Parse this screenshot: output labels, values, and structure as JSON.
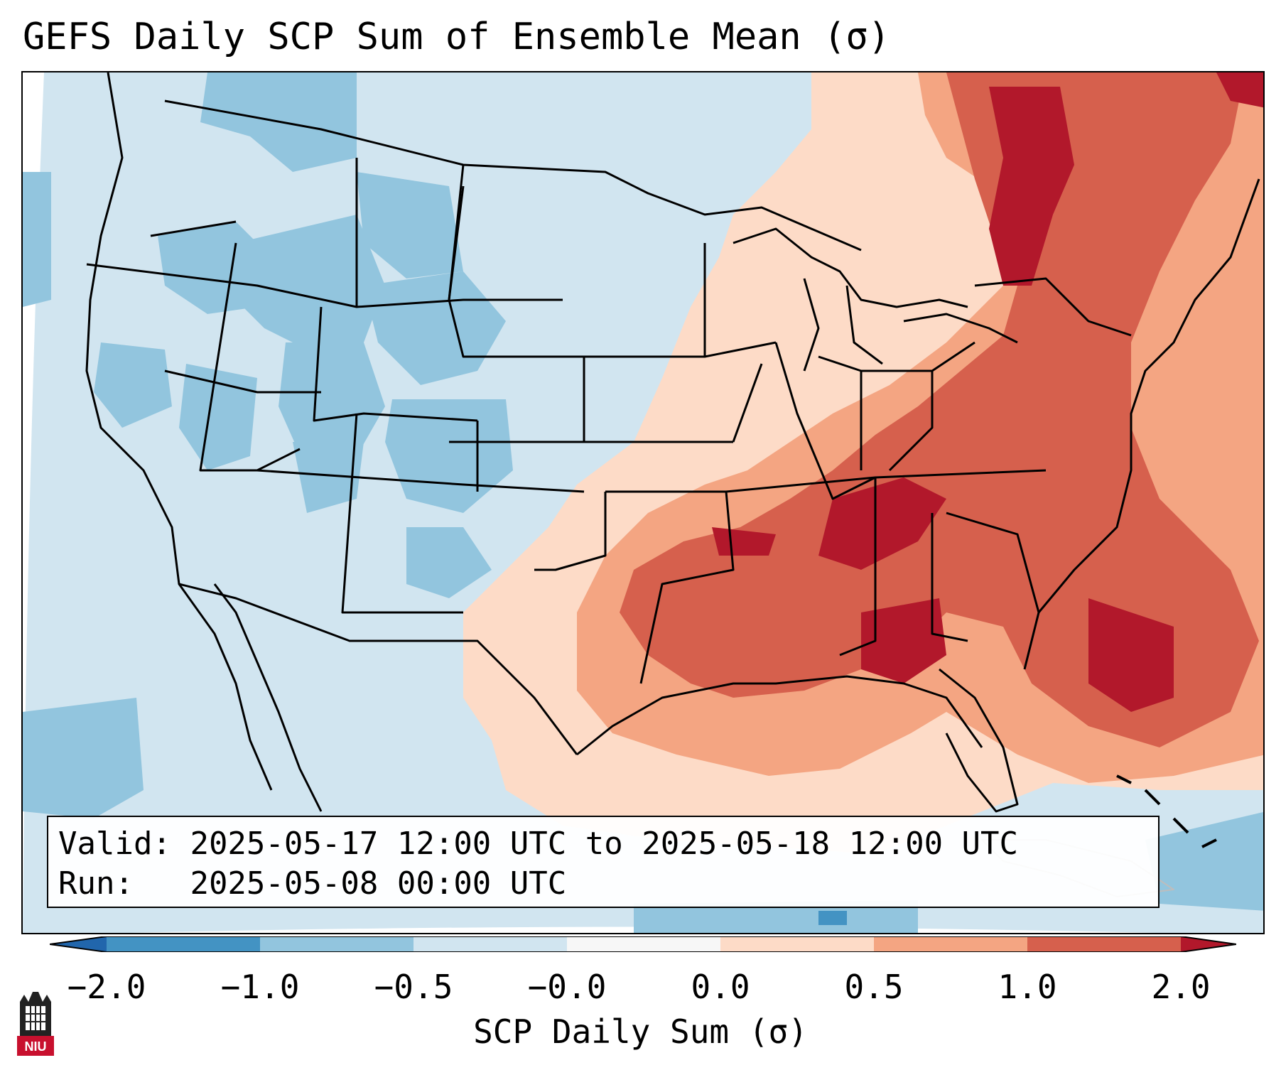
{
  "title": "GEFS Daily SCP Sum of Ensemble Mean (σ)",
  "info": {
    "valid_label": "Valid:",
    "valid_value": "2025-05-17 12:00 UTC to 2025-05-18 12:00 UTC",
    "run_label": "Run:",
    "run_value": "2025-05-08 00:00 UTC"
  },
  "colorbar": {
    "label": "SCP Daily Sum (σ)",
    "ticks": [
      "−2.0",
      "−1.0",
      "−0.5",
      "−0.0",
      "0.0",
      "0.5",
      "1.0",
      "2.0"
    ],
    "colors": [
      "#2166ac",
      "#4393c3",
      "#92c5de",
      "#d1e5f0",
      "#f7f7f7",
      "#fddbc7",
      "#f4a582",
      "#d6604d",
      "#b2182b"
    ]
  },
  "logo": {
    "text": "NIU",
    "color": "#c8102e"
  }
}
